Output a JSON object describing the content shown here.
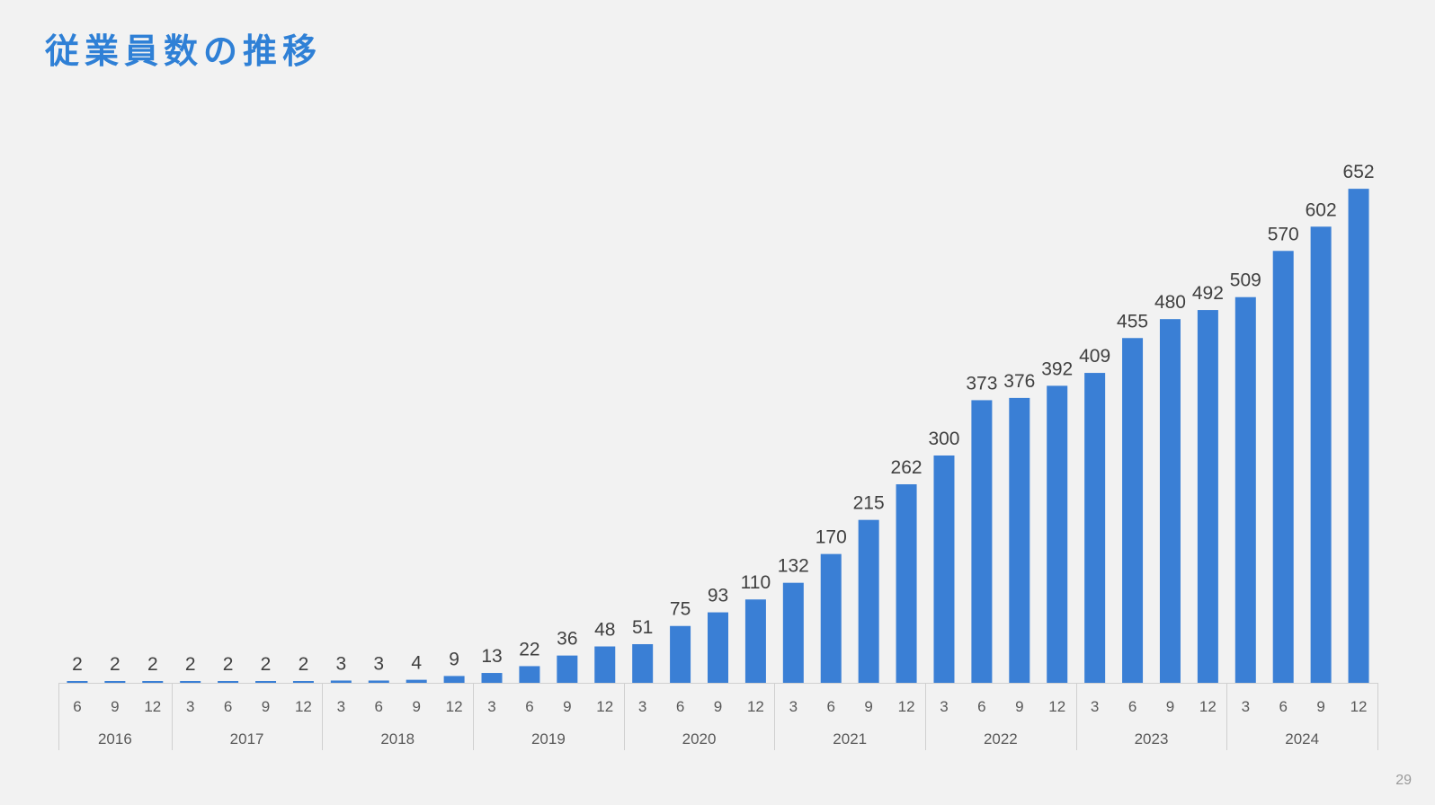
{
  "slide": {
    "title": "従業員数の推移",
    "page_number": "29"
  },
  "colors": {
    "bar": "#3a7fd5",
    "title": "#2f80d6",
    "background": "#f2f2f2",
    "axis": "#d0d0d0"
  },
  "chart_data": {
    "type": "bar",
    "title": "",
    "xlabel": "",
    "ylabel": "",
    "ylim": [
      0,
      700
    ],
    "grid": false,
    "legend": "none",
    "categories": [
      {
        "year": "2016",
        "month": "6"
      },
      {
        "year": "2016",
        "month": "9"
      },
      {
        "year": "2016",
        "month": "12"
      },
      {
        "year": "2017",
        "month": "3"
      },
      {
        "year": "2017",
        "month": "6"
      },
      {
        "year": "2017",
        "month": "9"
      },
      {
        "year": "2017",
        "month": "12"
      },
      {
        "year": "2018",
        "month": "3"
      },
      {
        "year": "2018",
        "month": "6"
      },
      {
        "year": "2018",
        "month": "9"
      },
      {
        "year": "2018",
        "month": "12"
      },
      {
        "year": "2019",
        "month": "3"
      },
      {
        "year": "2019",
        "month": "6"
      },
      {
        "year": "2019",
        "month": "9"
      },
      {
        "year": "2019",
        "month": "12"
      },
      {
        "year": "2020",
        "month": "3"
      },
      {
        "year": "2020",
        "month": "6"
      },
      {
        "year": "2020",
        "month": "9"
      },
      {
        "year": "2020",
        "month": "12"
      },
      {
        "year": "2021",
        "month": "3"
      },
      {
        "year": "2021",
        "month": "6"
      },
      {
        "year": "2021",
        "month": "9"
      },
      {
        "year": "2021",
        "month": "12"
      },
      {
        "year": "2022",
        "month": "3"
      },
      {
        "year": "2022",
        "month": "6"
      },
      {
        "year": "2022",
        "month": "9"
      },
      {
        "year": "2022",
        "month": "12"
      },
      {
        "year": "2023",
        "month": "3"
      },
      {
        "year": "2023",
        "month": "6"
      },
      {
        "year": "2023",
        "month": "9"
      },
      {
        "year": "2023",
        "month": "12"
      },
      {
        "year": "2024",
        "month": "3"
      },
      {
        "year": "2024",
        "month": "6"
      },
      {
        "year": "2024",
        "month": "9"
      },
      {
        "year": "2024",
        "month": "12"
      }
    ],
    "values": [
      2,
      2,
      2,
      2,
      2,
      2,
      2,
      3,
      3,
      4,
      9,
      13,
      22,
      36,
      48,
      51,
      75,
      93,
      110,
      132,
      170,
      215,
      262,
      300,
      373,
      376,
      392,
      409,
      455,
      480,
      492,
      509,
      570,
      602,
      652
    ],
    "years": [
      "2016",
      "2017",
      "2018",
      "2019",
      "2020",
      "2021",
      "2022",
      "2023",
      "2024"
    ]
  }
}
